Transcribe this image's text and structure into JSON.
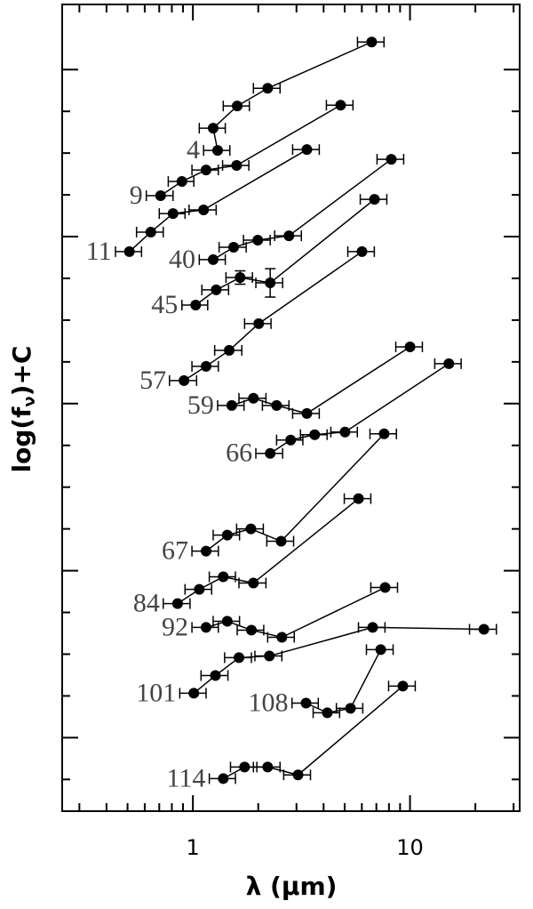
{
  "chart_data": {
    "type": "line",
    "x_label": "λ (μm)",
    "y_label": [
      "log(f",
      "ν",
      ")+C"
    ],
    "log_x": true,
    "color": "#000000",
    "xlim": [
      0.25,
      32
    ],
    "xticks": [
      1,
      10
    ],
    "xminorticks": [
      0.3,
      0.4,
      0.5,
      0.6,
      0.7,
      0.8,
      0.9,
      2,
      3,
      4,
      5,
      6,
      7,
      8,
      9,
      20,
      30
    ],
    "ylim": [
      -0.44,
      4.39
    ],
    "yticks": [
      -0.25,
      0,
      0.25,
      0.5,
      0.75,
      1,
      1.25,
      1.5,
      1.75,
      2,
      2.25,
      2.5,
      2.75,
      3,
      3.25,
      3.5,
      3.75,
      4
    ],
    "series": [
      {
        "name": "4",
        "x": [
          1.3,
          1.24,
          1.6,
          2.21,
          6.66
        ],
        "values": [
          3.516,
          3.649,
          3.782,
          3.888,
          4.165
        ],
        "xerr": [
          0.18,
          0.17,
          0.22,
          0.31,
          0.93
        ]
      },
      {
        "name": "9",
        "x": [
          0.71,
          0.89,
          1.15,
          1.59,
          4.79
        ],
        "values": [
          3.245,
          3.33,
          3.399,
          3.426,
          3.787
        ],
        "xerr": [
          0.1,
          0.12,
          0.16,
          0.22,
          0.67
        ]
      },
      {
        "name": "11",
        "x": [
          0.51,
          0.64,
          0.81,
          1.12,
          3.35
        ],
        "values": [
          2.91,
          3.027,
          3.138,
          3.16,
          3.521
        ],
        "xerr": [
          0.07,
          0.09,
          0.11,
          0.16,
          0.47
        ]
      },
      {
        "name": "40",
        "x": [
          1.24,
          1.54,
          1.99,
          2.77,
          8.2
        ],
        "values": [
          2.862,
          2.936,
          2.979,
          3.005,
          3.463
        ],
        "xerr": [
          0.17,
          0.22,
          0.28,
          0.39,
          1.15
        ]
      },
      {
        "name": "45",
        "x": [
          1.03,
          1.28,
          1.65,
          2.27,
          6.86
        ],
        "values": [
          2.59,
          2.681,
          2.755,
          2.723,
          3.223
        ],
        "xerr": [
          0.14,
          0.18,
          0.23,
          0.32,
          0.96
        ],
        "yerr": [
          null,
          null,
          0.04,
          0.085,
          null
        ]
      },
      {
        "name": "57",
        "x": [
          0.91,
          1.15,
          1.47,
          2.01,
          6.01
        ],
        "values": [
          2.138,
          2.223,
          2.319,
          2.479,
          2.91
        ],
        "xerr": [
          0.13,
          0.16,
          0.21,
          0.28,
          0.84
        ]
      },
      {
        "name": "59",
        "x": [
          1.51,
          1.9,
          2.43,
          3.35,
          10.0
        ],
        "values": [
          1.989,
          2.032,
          1.989,
          1.941,
          2.34
        ],
        "xerr": [
          0.21,
          0.27,
          0.34,
          0.47,
          1.4
        ]
      },
      {
        "name": "66",
        "x": [
          2.27,
          2.82,
          3.64,
          5.02,
          15.1
        ],
        "values": [
          1.702,
          1.782,
          1.814,
          1.83,
          2.239
        ],
        "xerr": [
          0.32,
          0.39,
          0.51,
          0.7,
          2.1
        ]
      },
      {
        "name": "67",
        "x": [
          1.15,
          1.44,
          1.85,
          2.55,
          7.6
        ],
        "values": [
          1.117,
          1.213,
          1.25,
          1.176,
          1.819
        ],
        "xerr": [
          0.16,
          0.2,
          0.26,
          0.36,
          1.06
        ]
      },
      {
        "name": "84",
        "x": [
          0.85,
          1.07,
          1.38,
          1.9,
          5.79
        ],
        "values": [
          0.803,
          0.888,
          0.963,
          0.926,
          1.431
        ],
        "xerr": [
          0.12,
          0.15,
          0.19,
          0.27,
          0.81
        ]
      },
      {
        "name": "92",
        "x": [
          1.15,
          1.44,
          1.86,
          2.57,
          7.68
        ],
        "values": [
          0.66,
          0.697,
          0.644,
          0.601,
          0.899
        ],
        "xerr": [
          0.16,
          0.2,
          0.26,
          0.36,
          1.08
        ]
      },
      {
        "name": "101",
        "x": [
          1.01,
          1.27,
          1.63,
          2.25,
          6.73,
          21.9
        ],
        "values": [
          0.266,
          0.372,
          0.479,
          0.489,
          0.66,
          0.649
        ],
        "xerr": [
          0.14,
          0.18,
          0.23,
          0.32,
          0.94,
          3.1
        ]
      },
      {
        "name": "108",
        "x": [
          3.32,
          4.16,
          5.32,
          7.33
        ],
        "values": [
          0.207,
          0.149,
          0.176,
          0.527
        ],
        "xerr": [
          0.46,
          0.58,
          0.74,
          1.03
        ]
      },
      {
        "name": "114",
        "x": [
          1.38,
          1.73,
          2.21,
          3.05,
          9.27
        ],
        "values": [
          -0.245,
          -0.176,
          -0.176,
          -0.223,
          0.309
        ],
        "xerr": [
          0.19,
          0.24,
          0.31,
          0.43,
          1.3
        ]
      }
    ]
  }
}
